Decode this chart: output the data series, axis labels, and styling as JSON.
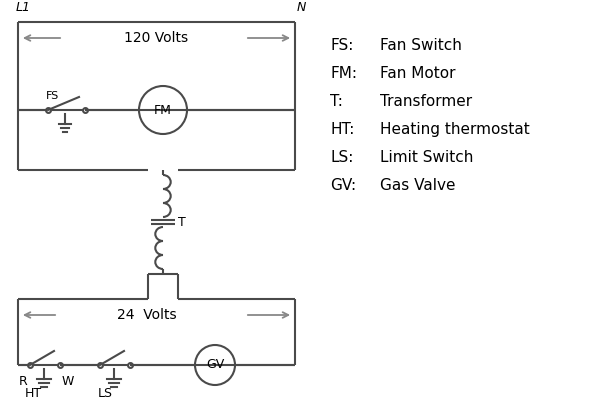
{
  "bg_color": "#ffffff",
  "line_color": "#4a4a4a",
  "arrow_color": "#888888",
  "text_color": "#000000",
  "legend_items": [
    [
      "FS:",
      "Fan Switch"
    ],
    [
      "FM:",
      "Fan Motor"
    ],
    [
      "T:",
      "Transformer"
    ],
    [
      "HT:",
      "Heating thermostat"
    ],
    [
      "LS:",
      "Limit Switch"
    ],
    [
      "GV:",
      "Gas Valve"
    ]
  ],
  "L1_label": "L1",
  "N_label": "N",
  "volts120_label": "120 Volts",
  "volts24_label": "24  Volts",
  "T_label": "T",
  "R_label": "R",
  "W_label": "W",
  "HT_label": "HT",
  "LS_label": "LS",
  "FS_label": "FS",
  "FM_label": "FM",
  "GV_label": "GV"
}
